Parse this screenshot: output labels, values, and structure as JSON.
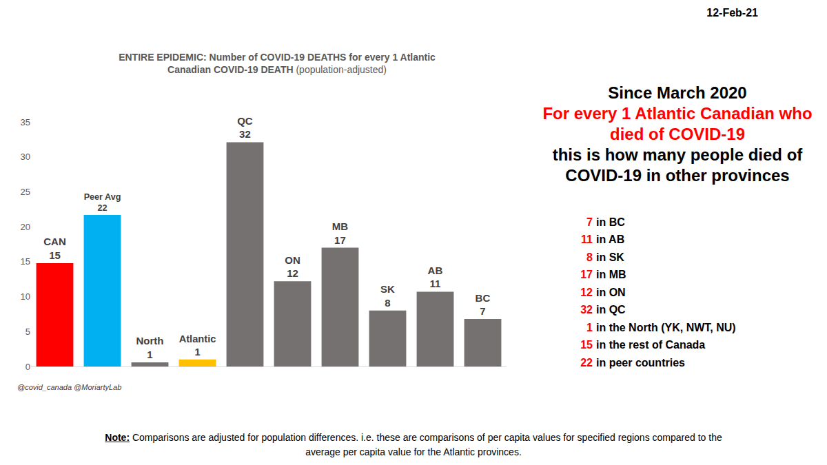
{
  "chart_data": {
    "type": "bar",
    "title": "ENTIRE EPIDEMIC: Number of COVID-19 DEATHS for every 1 Atlantic Canadian COVID-19 DEATH",
    "subtitle": "(population-adjusted)",
    "categories": [
      "CAN",
      "Peer Avg",
      "North",
      "Atlantic",
      "QC",
      "ON",
      "MB",
      "SK",
      "AB",
      "BC"
    ],
    "values": [
      14.8,
      21.7,
      0.6,
      1.0,
      32.1,
      12.2,
      17.0,
      8.0,
      10.7,
      6.8
    ],
    "value_labels": [
      "15",
      "22",
      "1",
      "1",
      "32",
      "12",
      "17",
      "8",
      "11",
      "7"
    ],
    "colors": [
      "#ff0000",
      "#00b0f0",
      "#767171",
      "#ffc000",
      "#767171",
      "#767171",
      "#767171",
      "#767171",
      "#767171",
      "#767171"
    ],
    "ylim": [
      0,
      35
    ],
    "yticks": [
      0,
      5,
      10,
      15,
      20,
      25,
      30,
      35
    ],
    "grid": false,
    "data_labels": true,
    "tick_labels": "y"
  },
  "date": "12-Feb-21",
  "headline": [
    {
      "text": "Since March 2020",
      "color": "black"
    },
    {
      "text": "For every 1 Atlantic Canadian who died of COVID-19",
      "color": "red"
    },
    {
      "text": "this is how many people died of COVID-19 in other provinces",
      "color": "black"
    }
  ],
  "list": [
    {
      "value": 7,
      "label": "in BC"
    },
    {
      "value": 11,
      "label": "in AB"
    },
    {
      "value": 8,
      "label": "in SK"
    },
    {
      "value": 17,
      "label": "in MB"
    },
    {
      "value": 12,
      "label": "in ON"
    },
    {
      "value": 32,
      "label": "in QC"
    },
    {
      "value": 1,
      "label": "in the North (YK, NWT, NU)"
    },
    {
      "value": 15,
      "label": "in the rest of Canada"
    },
    {
      "value": 22,
      "label": "in peer countries"
    }
  ],
  "credit": "@covid_canada @MoriartyLab",
  "note": {
    "label": "Note:",
    "text": "Comparisons are adjusted for population differences. i.e. these are comparisons of per capita values for specified regions compared to the  average per capita value for the Atlantic provinces."
  }
}
